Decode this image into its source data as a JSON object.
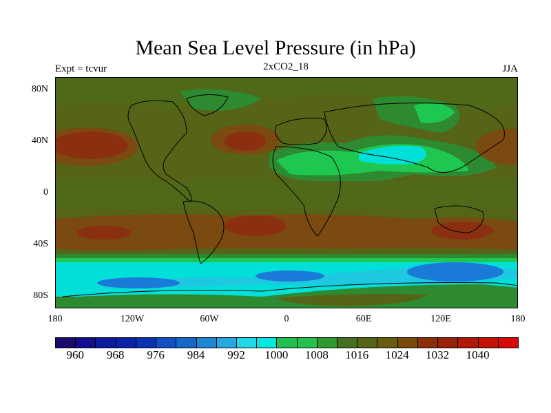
{
  "title": "Mean Sea Level Pressure (in hPa)",
  "left_text": "Expt = tcvur",
  "center_text": "2xCO2_18",
  "right_text": "JJA",
  "y_labels": [
    "80N",
    "40N",
    "0",
    "40S",
    "80S"
  ],
  "x_labels": [
    "180",
    "120W",
    "60W",
    "0",
    "60E",
    "120E",
    "180"
  ],
  "colorbar": {
    "colors": [
      "#1a0a6e",
      "#120d8c",
      "#0c1a9e",
      "#0a22a8",
      "#0c32b4",
      "#1050c4",
      "#1468c8",
      "#1e86d2",
      "#28a8e0",
      "#20d8e8",
      "#00e8e0",
      "#20c050",
      "#24c050",
      "#2e9a30",
      "#447020",
      "#546418",
      "#685c10",
      "#7a4a0c",
      "#8a3008",
      "#9a2008",
      "#b01808",
      "#c41206",
      "#d80808"
    ],
    "labels": [
      "960",
      "968",
      "976",
      "984",
      "992",
      "1000",
      "1008",
      "1016",
      "1024",
      "1032",
      "1040"
    ]
  },
  "legend_colors": {
    "high": "#8a3a10",
    "mid": "#556416",
    "green": "#2e8a30",
    "lightgreen": "#1ec850",
    "cyan": "#00e0d8",
    "blue": "#1a7ad8"
  }
}
